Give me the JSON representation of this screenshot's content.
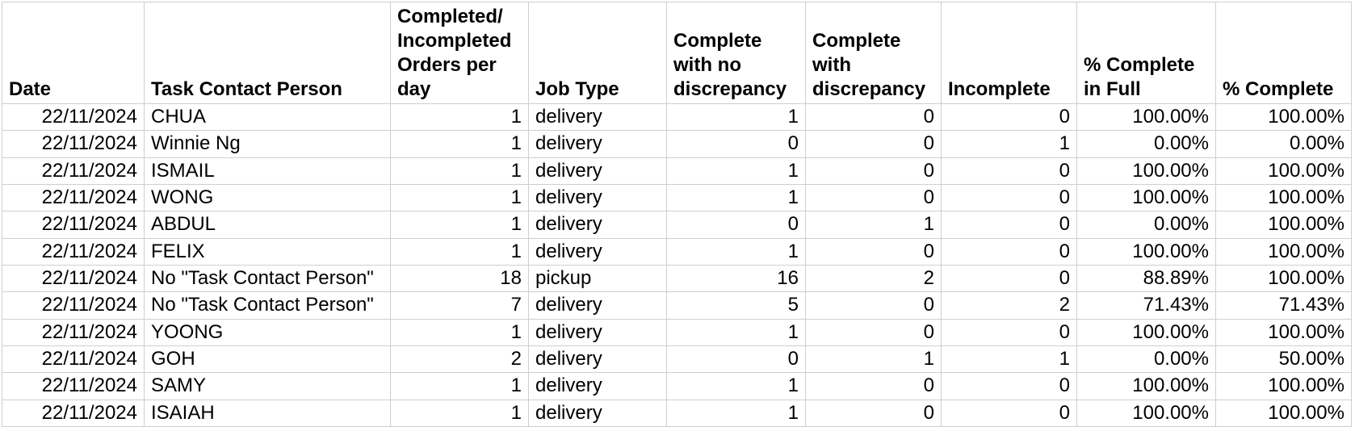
{
  "app": {
    "background_color": "#ffffff",
    "gridline_color": "#cfcfcf",
    "text_color": "#000000"
  },
  "table": {
    "columns": [
      {
        "key": "date",
        "label": "Date",
        "align": "right"
      },
      {
        "key": "task-contact-person",
        "label": "Task Contact Person",
        "align": "left"
      },
      {
        "key": "orders-per-day",
        "label": "Completed/ Incompleted Orders per day",
        "align": "right"
      },
      {
        "key": "job-type",
        "label": "Job Type",
        "align": "left"
      },
      {
        "key": "complete-no-discrepancy",
        "label": "Complete with no discrepancy",
        "align": "right"
      },
      {
        "key": "complete-with-discrepancy",
        "label": "Complete with discrepancy",
        "align": "right"
      },
      {
        "key": "incomplete",
        "label": "Incomplete",
        "align": "right"
      },
      {
        "key": "pct-complete-in-full",
        "label": "% Complete in Full",
        "align": "right"
      },
      {
        "key": "pct-complete",
        "label": "% Complete",
        "align": "right"
      }
    ],
    "rows": [
      [
        "22/11/2024",
        "CHUA",
        "1",
        "delivery",
        "1",
        "0",
        "0",
        "100.00%",
        "100.00%"
      ],
      [
        "22/11/2024",
        "Winnie Ng",
        "1",
        "delivery",
        "0",
        "0",
        "1",
        "0.00%",
        "0.00%"
      ],
      [
        "22/11/2024",
        "ISMAIL",
        "1",
        "delivery",
        "1",
        "0",
        "0",
        "100.00%",
        "100.00%"
      ],
      [
        "22/11/2024",
        "WONG",
        "1",
        "delivery",
        "1",
        "0",
        "0",
        "100.00%",
        "100.00%"
      ],
      [
        "22/11/2024",
        "ABDUL",
        "1",
        "delivery",
        "0",
        "1",
        "0",
        "0.00%",
        "100.00%"
      ],
      [
        "22/11/2024",
        "FELIX",
        "1",
        "delivery",
        "1",
        "0",
        "0",
        "100.00%",
        "100.00%"
      ],
      [
        "22/11/2024",
        "No \"Task Contact Person\"",
        "18",
        "pickup",
        "16",
        "2",
        "0",
        "88.89%",
        "100.00%"
      ],
      [
        "22/11/2024",
        "No \"Task Contact Person\"",
        "7",
        "delivery",
        "5",
        "0",
        "2",
        "71.43%",
        "71.43%"
      ],
      [
        "22/11/2024",
        "YOONG",
        "1",
        "delivery",
        "1",
        "0",
        "0",
        "100.00%",
        "100.00%"
      ],
      [
        "22/11/2024",
        "GOH",
        "2",
        "delivery",
        "0",
        "1",
        "1",
        "0.00%",
        "50.00%"
      ],
      [
        "22/11/2024",
        "SAMY",
        "1",
        "delivery",
        "1",
        "0",
        "0",
        "100.00%",
        "100.00%"
      ],
      [
        "22/11/2024",
        "ISAIAH",
        "1",
        "delivery",
        "1",
        "0",
        "0",
        "100.00%",
        "100.00%"
      ]
    ]
  }
}
